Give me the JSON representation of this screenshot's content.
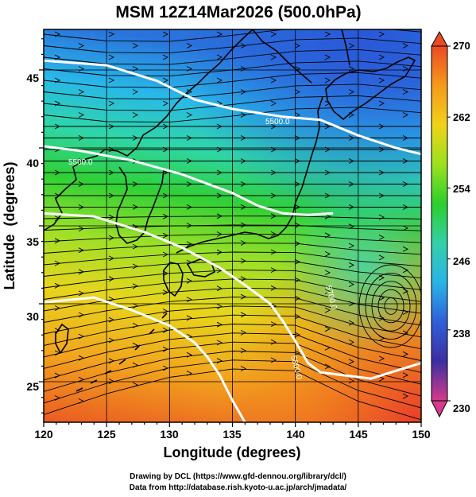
{
  "title": "MSM 12Z14Mar2026 (500.0hPa)",
  "credits": {
    "line1": "Drawing by DCL (https://www.gfd-dennou.org/library/dcl/)",
    "line2": "Data from http://database.rish.kyoto-u.ac.jp/arch/jmadata/"
  },
  "map": {
    "xlabel": "Longitude (degrees)",
    "ylabel": "Latitude  (degrees)",
    "lon_range": [
      120,
      150
    ],
    "lat_range": [
      22.4,
      47.6
    ],
    "lon_ticks": [
      "120",
      "125",
      "130",
      "135",
      "140",
      "145",
      "150"
    ],
    "lat_ticks": [
      "25",
      "30",
      "35",
      "40",
      "45"
    ],
    "gridlines": true,
    "contour_labels": [
      "5500.0",
      "5500.0",
      "5700.0",
      "5800.0"
    ]
  },
  "colorbar": {
    "min": 230,
    "max": 270,
    "tick_labels": [
      "270",
      "262",
      "254",
      "246",
      "238",
      "230"
    ],
    "colors": [
      "#d63a8a",
      "#3b2ea0",
      "#2f5fd8",
      "#29b4e6",
      "#33d0a8",
      "#2ccf2c",
      "#9be21e",
      "#f0d21a",
      "#f59a1c",
      "#ea4a24"
    ]
  },
  "chart_data": {
    "type": "heatmap",
    "title": "MSM 12Z14Mar2026 (500.0hPa)",
    "xlabel": "Longitude (degrees)",
    "ylabel": "Latitude  (degrees)",
    "xlim": [
      120,
      150
    ],
    "ylim": [
      22.4,
      47.6
    ],
    "color_range": [
      230,
      270
    ],
    "field_description": "temperature shading with streamlines and white height contours",
    "contours": [
      {
        "label": "5500.0",
        "points": [
          [
            120,
            40.1
          ],
          [
            123,
            39.8
          ],
          [
            127,
            39.2
          ],
          [
            131,
            38.3
          ],
          [
            135,
            37.1
          ],
          [
            137,
            36.3
          ],
          [
            139,
            35.8
          ],
          [
            141,
            35.7
          ],
          [
            143,
            35.8
          ]
        ]
      },
      {
        "label": "5500.0",
        "points": [
          [
            120,
            45.6
          ],
          [
            125,
            45.3
          ],
          [
            129,
            44.3
          ],
          [
            132,
            43.1
          ],
          [
            135,
            42.5
          ],
          [
            139,
            42.0
          ],
          [
            142,
            41.8
          ],
          [
            145,
            40.8
          ],
          [
            148,
            40.0
          ],
          [
            150,
            39.6
          ]
        ]
      },
      {
        "label": "5700.0",
        "points": [
          [
            120,
            35.8
          ],
          [
            124,
            35.6
          ],
          [
            128,
            34.6
          ],
          [
            131,
            33.6
          ],
          [
            134,
            32.3
          ],
          [
            136,
            31.2
          ],
          [
            138,
            30.0
          ],
          [
            139,
            28.9
          ],
          [
            140,
            27.6
          ],
          [
            141,
            26.2
          ],
          [
            142,
            25.6
          ],
          [
            146,
            25.2
          ],
          [
            150,
            26.2
          ]
        ]
      },
      {
        "label": "5800.0",
        "points": [
          [
            120,
            30.1
          ],
          [
            124,
            30.4
          ],
          [
            127,
            29.6
          ],
          [
            130,
            28.6
          ],
          [
            132,
            27.5
          ],
          [
            133,
            26.6
          ],
          [
            134,
            25.4
          ],
          [
            135,
            23.8
          ],
          [
            136,
            22.4
          ]
        ]
      }
    ]
  }
}
